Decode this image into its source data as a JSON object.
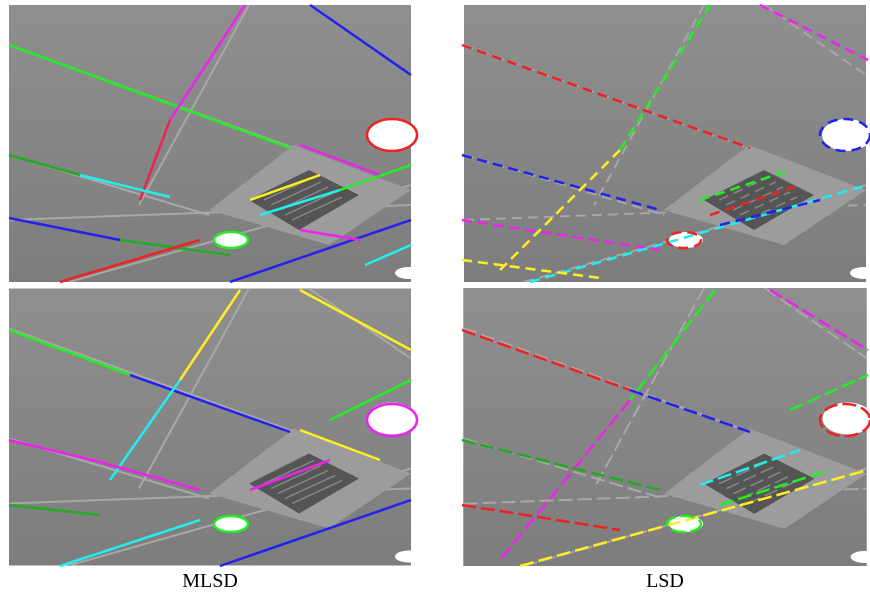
{
  "captions": {
    "left": "MLSD",
    "right": "LSD"
  }
}
